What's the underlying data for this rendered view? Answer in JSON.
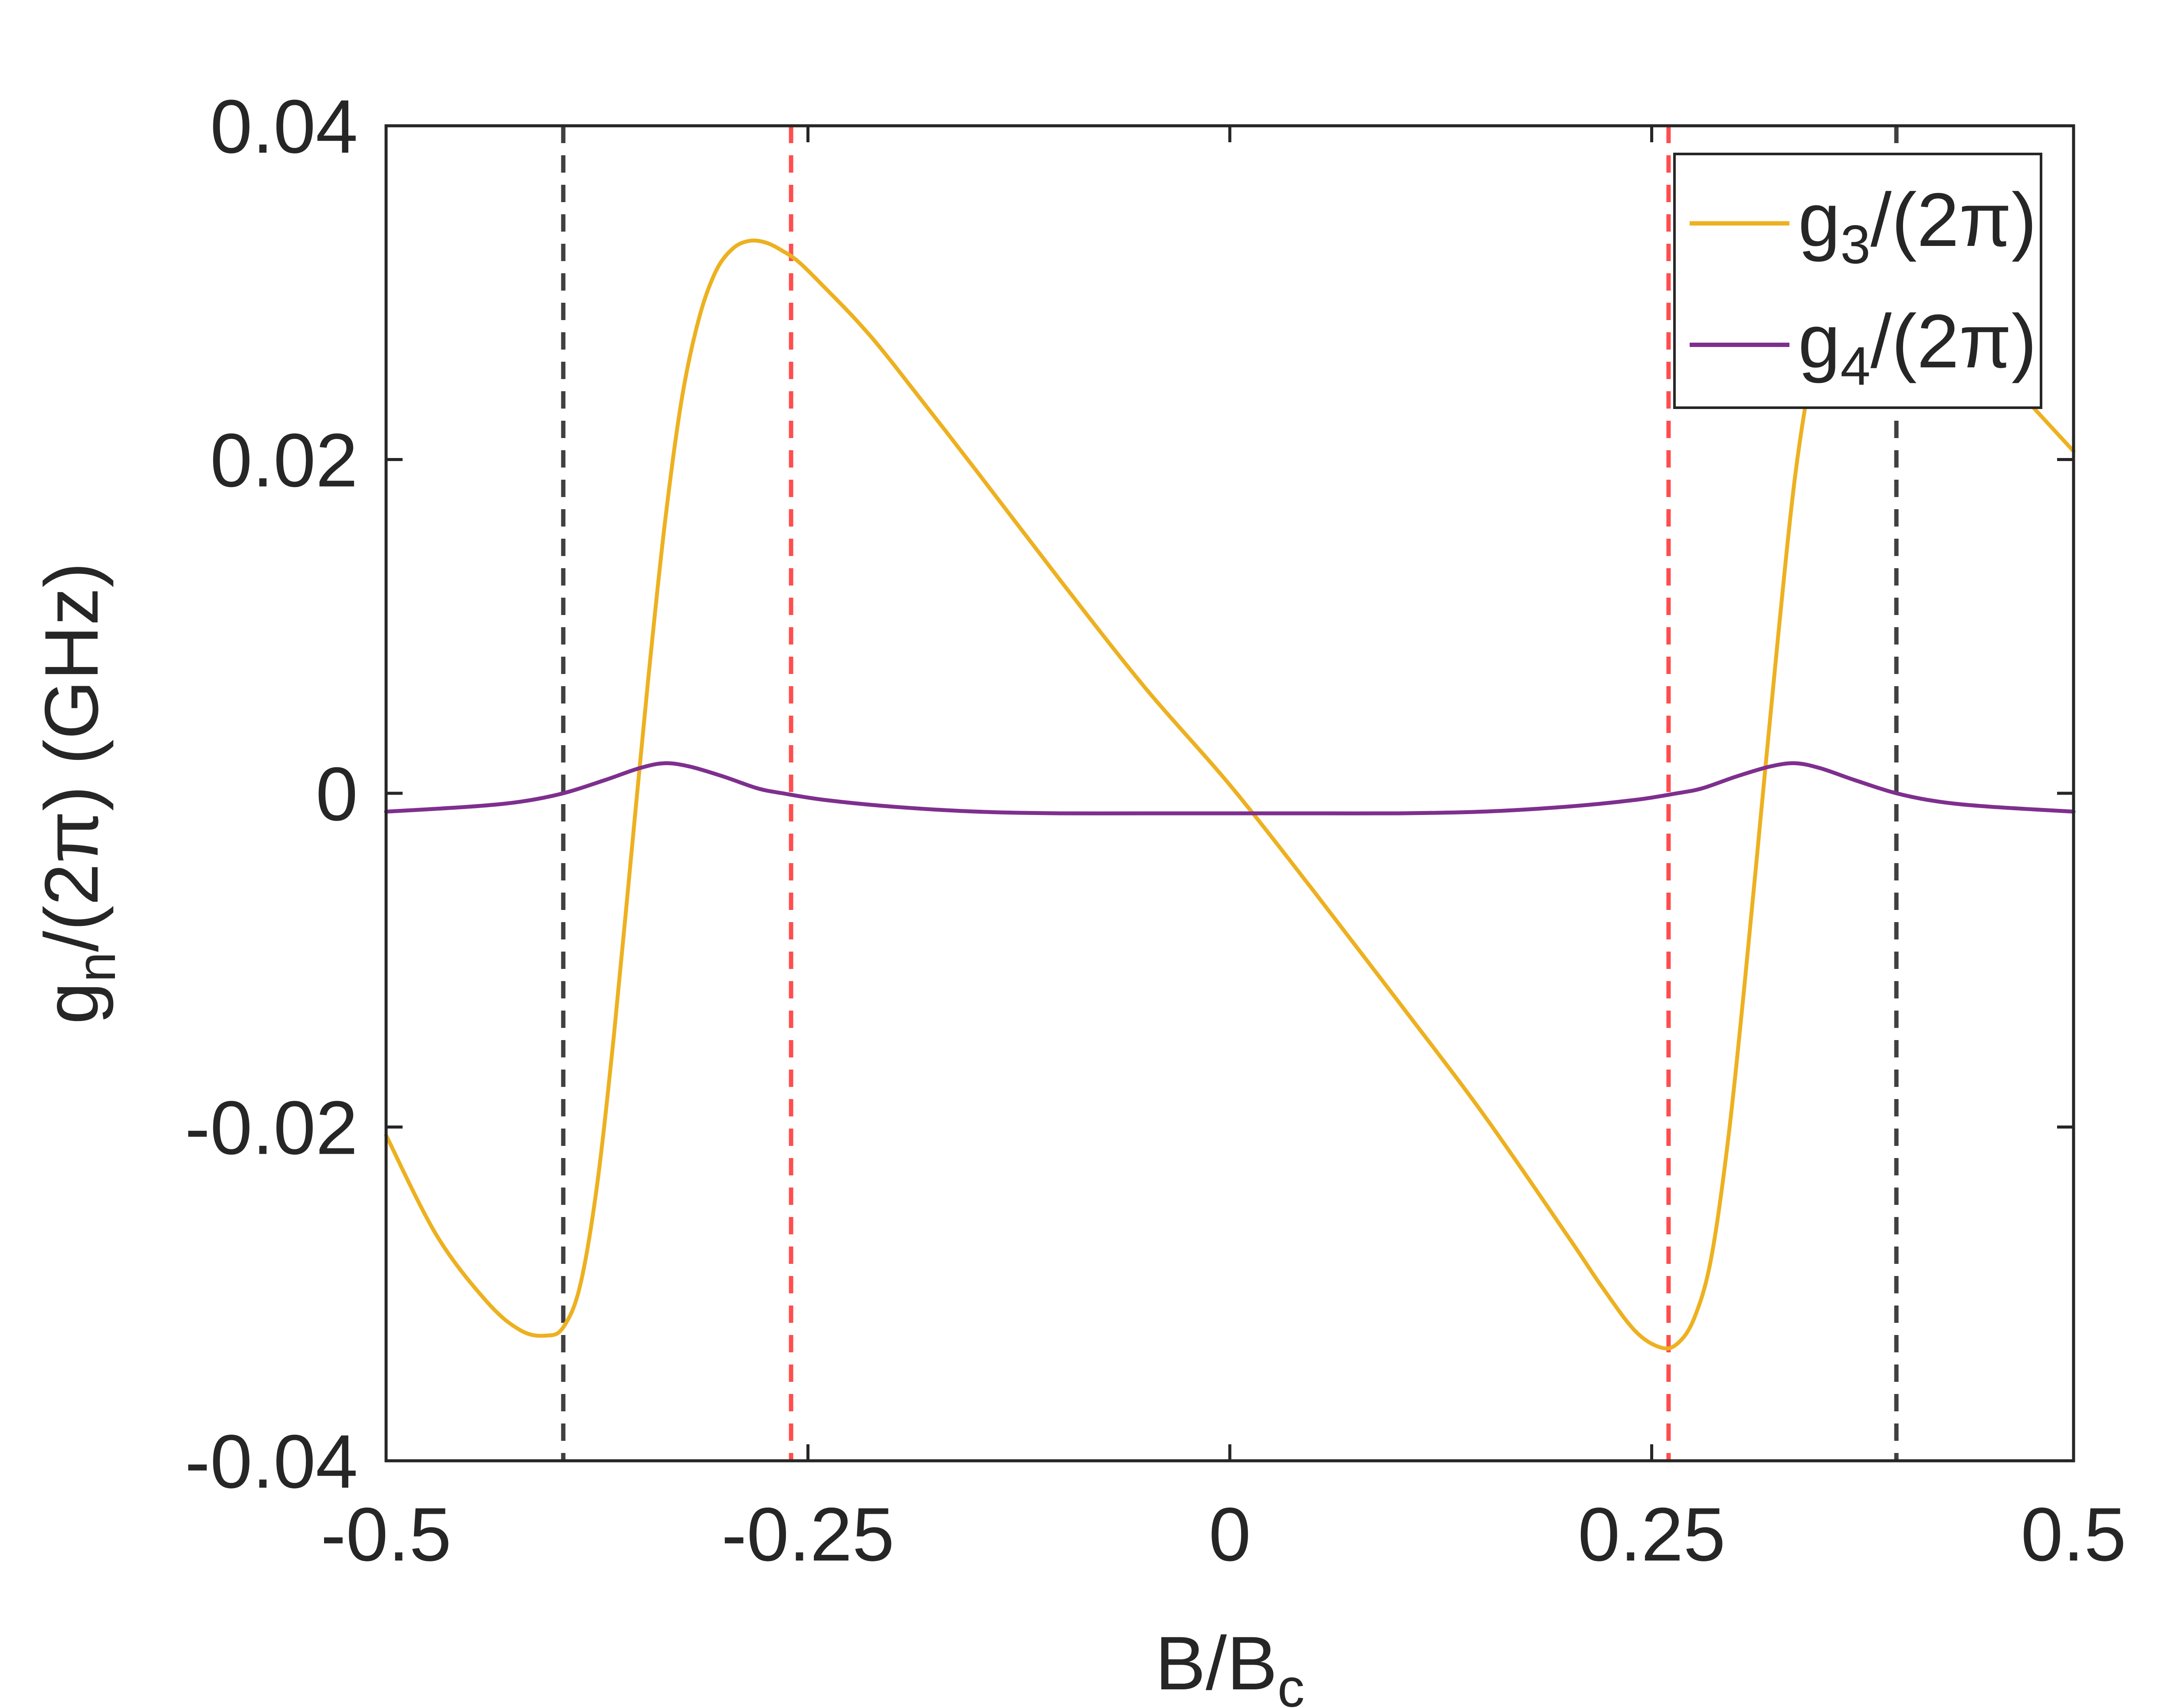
{
  "chart_data": {
    "type": "line",
    "xlabel": {
      "main": "B/B",
      "sub": "c"
    },
    "ylabel": {
      "pre": "g",
      "sub": "n",
      "post": "/(2π) (GHz)"
    },
    "xlim": [
      -0.5,
      0.5
    ],
    "ylim": [
      -0.04,
      0.04
    ],
    "xticks": [
      -0.5,
      -0.25,
      0,
      0.25,
      0.5
    ],
    "xtick_labels": [
      "-0.5",
      "-0.25",
      "0",
      "0.25",
      "0.5"
    ],
    "yticks": [
      -0.04,
      -0.02,
      0,
      0.02,
      0.04
    ],
    "ytick_labels": [
      "-0.04",
      "-0.02",
      "0",
      "0.02",
      "0.04"
    ],
    "grid": false,
    "legend_position": "top-right",
    "series": [
      {
        "name": "g3/(2π)",
        "label_parts": {
          "pre": "g",
          "sub": "3",
          "post": "/(2π)"
        },
        "color": "#EDB120",
        "x": [
          -0.5,
          -0.47,
          -0.44,
          -0.42,
          -0.405,
          -0.395,
          -0.385,
          -0.375,
          -0.365,
          -0.355,
          -0.345,
          -0.335,
          -0.325,
          -0.315,
          -0.305,
          -0.295,
          -0.285,
          -0.275,
          -0.265,
          -0.255,
          -0.24,
          -0.22,
          -0.2,
          -0.15,
          -0.1,
          -0.05,
          0,
          0.05,
          0.1,
          0.15,
          0.2,
          0.22,
          0.24,
          0.255,
          0.265,
          0.275,
          0.285,
          0.295,
          0.305,
          0.315,
          0.325,
          0.335,
          0.345,
          0.355,
          0.365,
          0.38,
          0.4,
          0.44,
          0.47,
          0.5
        ],
        "y": [
          -0.0205,
          -0.0265,
          -0.0305,
          -0.0322,
          -0.0325,
          -0.032,
          -0.0295,
          -0.0235,
          -0.0145,
          -0.004,
          0.0065,
          0.016,
          0.0235,
          0.0283,
          0.0312,
          0.0326,
          0.0331,
          0.033,
          0.0325,
          0.0318,
          0.0303,
          0.0282,
          0.0258,
          0.0193,
          0.0127,
          0.0063,
          0.0005,
          -0.0059,
          -0.0125,
          -0.0192,
          -0.0265,
          -0.0295,
          -0.0322,
          -0.0332,
          -0.033,
          -0.0315,
          -0.028,
          -0.021,
          -0.0115,
          -0.001,
          0.0095,
          0.019,
          0.0255,
          0.03,
          0.032,
          0.0328,
          0.0315,
          0.0272,
          0.0238,
          0.0205
        ]
      },
      {
        "name": "g4/(2π)",
        "label_parts": {
          "pre": "g",
          "sub": "4",
          "post": "/(2π)"
        },
        "color": "#7E2F8E",
        "x": [
          -0.5,
          -0.45,
          -0.42,
          -0.395,
          -0.37,
          -0.35,
          -0.335,
          -0.32,
          -0.3,
          -0.28,
          -0.265,
          -0.24,
          -0.2,
          -0.15,
          -0.1,
          -0.05,
          0,
          0.05,
          0.1,
          0.15,
          0.2,
          0.24,
          0.265,
          0.28,
          0.3,
          0.32,
          0.335,
          0.35,
          0.37,
          0.395,
          0.42,
          0.45,
          0.5
        ],
        "y": [
          -0.0011,
          -0.0008,
          -0.0005,
          0.0,
          0.0008,
          0.0015,
          0.0018,
          0.0016,
          0.001,
          0.0003,
          0.0,
          -0.0004,
          -0.0008,
          -0.0011,
          -0.0012,
          -0.0012,
          -0.0012,
          -0.0012,
          -0.0012,
          -0.0011,
          -0.0008,
          -0.0004,
          0.0,
          0.0003,
          0.001,
          0.0016,
          0.0018,
          0.0015,
          0.0008,
          0.0,
          -0.0005,
          -0.0008,
          -0.0011
        ]
      }
    ],
    "reference_lines": [
      {
        "x": -0.395,
        "color": "#404040"
      },
      {
        "x": -0.26,
        "color": "#FF4D4D"
      },
      {
        "x": 0.26,
        "color": "#FF4D4D"
      },
      {
        "x": 0.395,
        "color": "#404040"
      }
    ]
  }
}
